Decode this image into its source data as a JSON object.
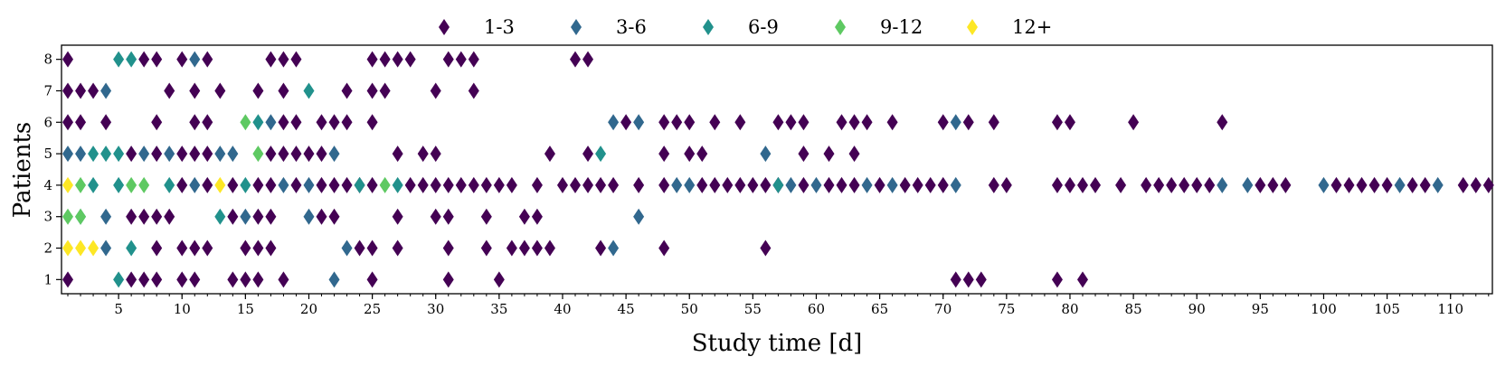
{
  "chart_data": {
    "type": "scatter",
    "marker": "diamond",
    "title": "",
    "xlabel": "Study time [d]",
    "ylabel": "Patients",
    "xlim": [
      0.5,
      113.3
    ],
    "ylim": [
      0.55,
      8.45
    ],
    "x_ticks_major": [
      5,
      10,
      15,
      20,
      25,
      30,
      35,
      40,
      45,
      50,
      55,
      60,
      65,
      70,
      75,
      80,
      85,
      90,
      95,
      100,
      105,
      110
    ],
    "x_ticks_minor_every": 1,
    "y_ticks": [
      1,
      2,
      3,
      4,
      5,
      6,
      7,
      8
    ],
    "grid": false,
    "legend_position": "top-center, outside plot",
    "series": [
      {
        "name": "1-3",
        "color": "#440154",
        "points": [
          [
            1,
            8
          ],
          [
            7,
            8
          ],
          [
            8,
            8
          ],
          [
            10,
            8
          ],
          [
            12,
            8
          ],
          [
            17,
            8
          ],
          [
            18,
            8
          ],
          [
            19,
            8
          ],
          [
            25,
            8
          ],
          [
            26,
            8
          ],
          [
            27,
            8
          ],
          [
            28,
            8
          ],
          [
            31,
            8
          ],
          [
            32,
            8
          ],
          [
            33,
            8
          ],
          [
            41,
            8
          ],
          [
            42,
            8
          ],
          [
            1,
            7
          ],
          [
            2,
            7
          ],
          [
            3,
            7
          ],
          [
            9,
            7
          ],
          [
            11,
            7
          ],
          [
            13,
            7
          ],
          [
            16,
            7
          ],
          [
            18,
            7
          ],
          [
            23,
            7
          ],
          [
            25,
            7
          ],
          [
            26,
            7
          ],
          [
            30,
            7
          ],
          [
            33,
            7
          ],
          [
            1,
            6
          ],
          [
            2,
            6
          ],
          [
            4,
            6
          ],
          [
            8,
            6
          ],
          [
            11,
            6
          ],
          [
            12,
            6
          ],
          [
            18,
            6
          ],
          [
            19,
            6
          ],
          [
            21,
            6
          ],
          [
            22,
            6
          ],
          [
            23,
            6
          ],
          [
            25,
            6
          ],
          [
            45,
            6
          ],
          [
            48,
            6
          ],
          [
            49,
            6
          ],
          [
            50,
            6
          ],
          [
            52,
            6
          ],
          [
            54,
            6
          ],
          [
            57,
            6
          ],
          [
            58,
            6
          ],
          [
            59,
            6
          ],
          [
            62,
            6
          ],
          [
            63,
            6
          ],
          [
            64,
            6
          ],
          [
            66,
            6
          ],
          [
            70,
            6
          ],
          [
            72,
            6
          ],
          [
            74,
            6
          ],
          [
            79,
            6
          ],
          [
            80,
            6
          ],
          [
            85,
            6
          ],
          [
            92,
            6
          ],
          [
            6,
            5
          ],
          [
            8,
            5
          ],
          [
            10,
            5
          ],
          [
            11,
            5
          ],
          [
            12,
            5
          ],
          [
            17,
            5
          ],
          [
            18,
            5
          ],
          [
            19,
            5
          ],
          [
            20,
            5
          ],
          [
            21,
            5
          ],
          [
            27,
            5
          ],
          [
            29,
            5
          ],
          [
            30,
            5
          ],
          [
            39,
            5
          ],
          [
            42,
            5
          ],
          [
            48,
            5
          ],
          [
            50,
            5
          ],
          [
            51,
            5
          ],
          [
            59,
            5
          ],
          [
            61,
            5
          ],
          [
            63,
            5
          ],
          [
            10,
            4
          ],
          [
            12,
            4
          ],
          [
            14,
            4
          ],
          [
            16,
            4
          ],
          [
            17,
            4
          ],
          [
            19,
            4
          ],
          [
            21,
            4
          ],
          [
            22,
            4
          ],
          [
            23,
            4
          ],
          [
            24,
            4
          ],
          [
            25,
            4
          ],
          [
            28,
            4
          ],
          [
            29,
            4
          ],
          [
            30,
            4
          ],
          [
            31,
            4
          ],
          [
            32,
            4
          ],
          [
            33,
            4
          ],
          [
            34,
            4
          ],
          [
            35,
            4
          ],
          [
            36,
            4
          ],
          [
            38,
            4
          ],
          [
            40,
            4
          ],
          [
            41,
            4
          ],
          [
            42,
            4
          ],
          [
            43,
            4
          ],
          [
            44,
            4
          ],
          [
            46,
            4
          ],
          [
            48,
            4
          ],
          [
            51,
            4
          ],
          [
            52,
            4
          ],
          [
            53,
            4
          ],
          [
            54,
            4
          ],
          [
            55,
            4
          ],
          [
            56,
            4
          ],
          [
            57,
            4
          ],
          [
            59,
            4
          ],
          [
            61,
            4
          ],
          [
            62,
            4
          ],
          [
            63,
            4
          ],
          [
            65,
            4
          ],
          [
            67,
            4
          ],
          [
            68,
            4
          ],
          [
            69,
            4
          ],
          [
            70,
            4
          ],
          [
            74,
            4
          ],
          [
            75,
            4
          ],
          [
            79,
            4
          ],
          [
            80,
            4
          ],
          [
            81,
            4
          ],
          [
            82,
            4
          ],
          [
            84,
            4
          ],
          [
            86,
            4
          ],
          [
            87,
            4
          ],
          [
            88,
            4
          ],
          [
            89,
            4
          ],
          [
            90,
            4
          ],
          [
            91,
            4
          ],
          [
            95,
            4
          ],
          [
            96,
            4
          ],
          [
            97,
            4
          ],
          [
            101,
            4
          ],
          [
            102,
            4
          ],
          [
            103,
            4
          ],
          [
            104,
            4
          ],
          [
            105,
            4
          ],
          [
            107,
            4
          ],
          [
            108,
            4
          ],
          [
            111,
            4
          ],
          [
            112,
            4
          ],
          [
            113,
            4
          ],
          [
            6,
            3
          ],
          [
            7,
            3
          ],
          [
            8,
            3
          ],
          [
            9,
            3
          ],
          [
            14,
            3
          ],
          [
            16,
            3
          ],
          [
            17,
            3
          ],
          [
            21,
            3
          ],
          [
            22,
            3
          ],
          [
            27,
            3
          ],
          [
            30,
            3
          ],
          [
            31,
            3
          ],
          [
            34,
            3
          ],
          [
            37,
            3
          ],
          [
            38,
            3
          ],
          [
            8,
            2
          ],
          [
            10,
            2
          ],
          [
            11,
            2
          ],
          [
            12,
            2
          ],
          [
            15,
            2
          ],
          [
            16,
            2
          ],
          [
            17,
            2
          ],
          [
            24,
            2
          ],
          [
            25,
            2
          ],
          [
            27,
            2
          ],
          [
            31,
            2
          ],
          [
            34,
            2
          ],
          [
            36,
            2
          ],
          [
            37,
            2
          ],
          [
            38,
            2
          ],
          [
            39,
            2
          ],
          [
            43,
            2
          ],
          [
            48,
            2
          ],
          [
            56,
            2
          ],
          [
            1,
            1
          ],
          [
            6,
            1
          ],
          [
            7,
            1
          ],
          [
            8,
            1
          ],
          [
            10,
            1
          ],
          [
            11,
            1
          ],
          [
            14,
            1
          ],
          [
            15,
            1
          ],
          [
            16,
            1
          ],
          [
            18,
            1
          ],
          [
            25,
            1
          ],
          [
            31,
            1
          ],
          [
            35,
            1
          ],
          [
            71,
            1
          ],
          [
            72,
            1
          ],
          [
            73,
            1
          ],
          [
            79,
            1
          ],
          [
            81,
            1
          ]
        ]
      },
      {
        "name": "3-6",
        "color": "#31688e",
        "points": [
          [
            11,
            8
          ],
          [
            4,
            7
          ],
          [
            17,
            6
          ],
          [
            44,
            6
          ],
          [
            46,
            6
          ],
          [
            71,
            6
          ],
          [
            1,
            5
          ],
          [
            2,
            5
          ],
          [
            7,
            5
          ],
          [
            9,
            5
          ],
          [
            13,
            5
          ],
          [
            14,
            5
          ],
          [
            22,
            5
          ],
          [
            56,
            5
          ],
          [
            11,
            4
          ],
          [
            18,
            4
          ],
          [
            20,
            4
          ],
          [
            49,
            4
          ],
          [
            50,
            4
          ],
          [
            58,
            4
          ],
          [
            60,
            4
          ],
          [
            64,
            4
          ],
          [
            66,
            4
          ],
          [
            71,
            4
          ],
          [
            92,
            4
          ],
          [
            94,
            4
          ],
          [
            100,
            4
          ],
          [
            106,
            4
          ],
          [
            109,
            4
          ],
          [
            4,
            3
          ],
          [
            15,
            3
          ],
          [
            20,
            3
          ],
          [
            46,
            3
          ],
          [
            4,
            2
          ],
          [
            23,
            2
          ],
          [
            44,
            2
          ],
          [
            22,
            1
          ]
        ]
      },
      {
        "name": "6-9",
        "color": "#21918c",
        "points": [
          [
            5,
            8
          ],
          [
            6,
            8
          ],
          [
            20,
            7
          ],
          [
            16,
            6
          ],
          [
            3,
            5
          ],
          [
            4,
            5
          ],
          [
            5,
            5
          ],
          [
            43,
            5
          ],
          [
            3,
            4
          ],
          [
            5,
            4
          ],
          [
            9,
            4
          ],
          [
            15,
            4
          ],
          [
            24,
            4
          ],
          [
            27,
            4
          ],
          [
            57,
            4
          ],
          [
            2,
            3
          ],
          [
            13,
            3
          ],
          [
            6,
            2
          ],
          [
            5,
            1
          ]
        ]
      },
      {
        "name": "9-12",
        "color": "#5ec962",
        "points": [
          [
            15,
            6
          ],
          [
            16,
            5
          ],
          [
            2,
            4
          ],
          [
            6,
            4
          ],
          [
            7,
            4
          ],
          [
            26,
            4
          ],
          [
            1,
            3
          ],
          [
            2,
            3
          ]
        ]
      },
      {
        "name": "12+",
        "color": "#fde725",
        "points": [
          [
            1,
            4
          ],
          [
            13,
            4
          ],
          [
            1,
            2
          ],
          [
            2,
            2
          ],
          [
            3,
            2
          ]
        ]
      }
    ]
  }
}
